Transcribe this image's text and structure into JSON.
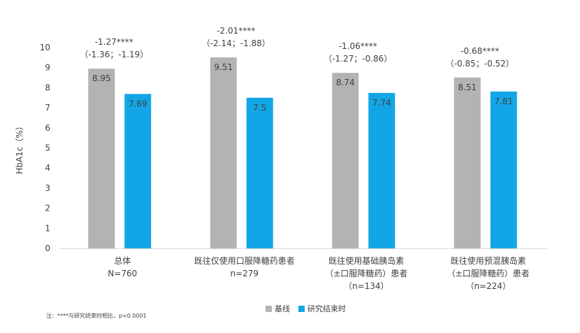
{
  "chart_data": {
    "type": "bar",
    "ylabel": "HbA1c（%）",
    "ylim": [
      0,
      10
    ],
    "yticks": [
      "0",
      "1",
      "2",
      "3",
      "4",
      "5",
      "6",
      "7",
      "8",
      "9",
      "10"
    ],
    "grid": false,
    "legend_position": "bottom",
    "colors": {
      "baseline": "#b3b3b3",
      "end": "#12a6e6"
    },
    "categories": [
      {
        "lines": [
          "总体",
          "N=760"
        ]
      },
      {
        "lines": [
          "既往仅使用口服降糖药患者",
          "n=279"
        ]
      },
      {
        "lines": [
          "既往使用基础胰岛素",
          "（±口服降糖药）患者",
          "（n=134）"
        ]
      },
      {
        "lines": [
          "既往使用预混胰岛素",
          "（±口服降糖药）患者",
          "（n=224）"
        ]
      }
    ],
    "series": [
      {
        "name": "基线",
        "values": [
          8.95,
          9.51,
          8.74,
          8.51
        ],
        "labels": [
          "8.95",
          "9.51",
          "8.74",
          "8.51"
        ]
      },
      {
        "name": "研究结束时",
        "values": [
          7.69,
          7.5,
          7.74,
          7.81
        ],
        "labels": [
          "7.69",
          "7.5",
          "7.74",
          "7.81"
        ]
      }
    ],
    "annotations": [
      {
        "diff": "-1.27****",
        "ci": "（-1.36；-1.19）"
      },
      {
        "diff": "-2.01****",
        "ci": "（-2.14；-1.88）"
      },
      {
        "diff": "-1.06****",
        "ci": "（-1.27；-0.86）"
      },
      {
        "diff": "-0.68****",
        "ci": "（-0.85；-0.52）"
      }
    ]
  },
  "footnote": "注：****与研究结束时相比，p<0.0001"
}
